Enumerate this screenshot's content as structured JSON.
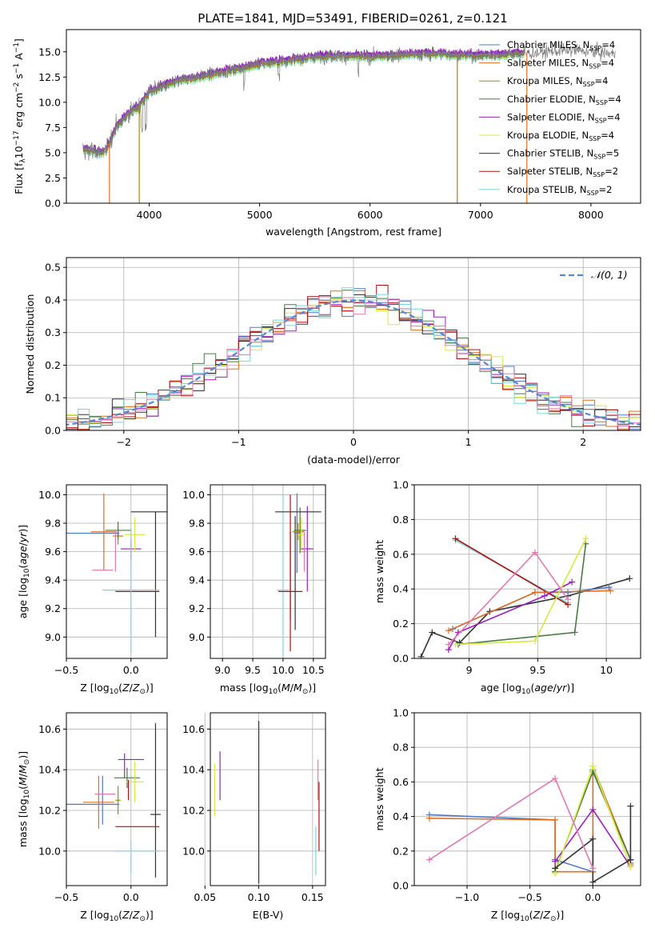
{
  "figure_title": "PLATE=1841, MJD=53491, FIBERID=0261, z=0.121",
  "colors": {
    "Chabrier MILES": "#4f78c8",
    "Salpeter MILES": "#e07020",
    "Kroupa MILES": "#a08a10",
    "Chabrier ELODIE": "#4a7a45",
    "Salpeter ELODIE": "#9a22b8",
    "Kroupa ELODIE": "#d8ea40",
    "Chabrier STELIB": "#333333",
    "Salpeter STELIB": "#b01010",
    "Kroupa STELIB": "#78d8e0",
    "Pink": "#e07ab0",
    "Data": "#7a7a7a",
    "Normal": "#5588d0"
  },
  "chart_data": [
    {
      "type": "line",
      "title": "PLATE=1841, MJD=53491, FIBERID=0261, z=0.121",
      "xlabel": "wavelength [Angstrom, rest frame]",
      "ylabel": "Flux [f_λ 10^-17 erg cm^-2 s^-1 A^-1]",
      "xlim": [
        3250,
        8450
      ],
      "ylim": [
        0,
        17.2
      ],
      "xticks": [
        4000,
        5000,
        6000,
        7000,
        8000
      ],
      "yticks": [
        0.0,
        2.5,
        5.0,
        7.5,
        10.0,
        12.5,
        15.0
      ],
      "legend": [
        "Chabrier MILES, N_SSP=4",
        "Salpeter MILES, N_SSP=4",
        "Kroupa MILES, N_SSP=4",
        "Chabrier ELODIE, N_SSP=4",
        "Salpeter ELODIE, N_SSP=4",
        "Kroupa ELODIE, N_SSP=4",
        "Chabrier STELIB, N_SSP=5",
        "Salpeter STELIB, N_SSP=2",
        "Kroupa STELIB, N_SSP=2"
      ],
      "continuum_x": [
        3400,
        3600,
        3700,
        3800,
        3900,
        4000,
        4100,
        4300,
        4500,
        4800,
        5000,
        5300,
        5600,
        6000,
        6300,
        6600,
        7000,
        7300,
        7500,
        7800,
        8100,
        8200
      ],
      "continuum_y": [
        5.3,
        5.0,
        7.5,
        8.8,
        9.5,
        11.0,
        11.5,
        12.2,
        12.6,
        13.3,
        13.8,
        14.2,
        14.6,
        14.5,
        14.7,
        14.8,
        14.6,
        14.8,
        14.9,
        15.2,
        14.9,
        14.8
      ],
      "noise": 0.7
    },
    {
      "type": "histogram",
      "xlabel": "(data-model)/error",
      "ylabel": "Normed distribution",
      "xlim": [
        -2.5,
        2.5
      ],
      "ylim": [
        0,
        0.53
      ],
      "xticks": [
        -2,
        -1,
        0,
        1,
        2
      ],
      "yticks": [
        0.0,
        0.1,
        0.2,
        0.3,
        0.4,
        0.5
      ],
      "legend": [
        "𝒩(0, 1)"
      ],
      "bin_width": 0.1
    },
    {
      "type": "errorbar",
      "xlabel": "Z [log10(Z/Z⊙)]",
      "ylabel": "age  [log10(age/yr)]",
      "xlim": [
        -0.5,
        0.28
      ],
      "ylim": [
        8.85,
        10.07
      ],
      "xticks": [
        -0.5,
        0.0
      ],
      "xticklabels": [
        "−0.5",
        "0.0"
      ],
      "yticks": [
        9.0,
        9.2,
        9.4,
        9.6,
        9.8,
        10.0
      ],
      "points": [
        {
          "c": "Chabrier MILES",
          "x": -0.31,
          "xerr": 0.22,
          "y": 9.73,
          "yerr": 0
        },
        {
          "c": "Salpeter MILES",
          "x": -0.21,
          "xerr": 0.1,
          "y": 9.74,
          "yerr": 0.27
        },
        {
          "c": "Kroupa MILES",
          "x": -0.1,
          "xerr": 0.04,
          "y": 9.71,
          "yerr": 0.06
        },
        {
          "c": "Chabrier ELODIE",
          "x": -0.1,
          "xerr": 0.1,
          "y": 9.75,
          "yerr": 0.06
        },
        {
          "c": "Salpeter ELODIE",
          "x": 0.0,
          "xerr": 0.08,
          "y": 9.62,
          "yerr": 0.07
        },
        {
          "c": "Kroupa ELODIE",
          "x": 0.03,
          "xerr": 0.08,
          "y": 9.72,
          "yerr": 0.12
        },
        {
          "c": "Chabrier STELIB",
          "x": 0.19,
          "xerr": 0.19,
          "y": 9.88,
          "yerr": 0.0
        },
        {
          "c": "Chabrier STELIB",
          "x": 0.19,
          "xerr": 0.0,
          "y": 9.44,
          "yerr": 0.44
        },
        {
          "c": "Salpeter STELIB",
          "x": 0.05,
          "xerr": 0.17,
          "y": 9.32,
          "yerr": 0
        },
        {
          "c": "Kroupa STELIB",
          "x": -0.0,
          "xerr": 0.22,
          "y": 9.33,
          "yerr": 0.44
        },
        {
          "c": "Pink",
          "x": -0.22,
          "xerr": 0.08,
          "y": 9.47,
          "yerr": 0
        },
        {
          "c": "Pink",
          "x": -0.12,
          "xerr": 0,
          "y": 9.6,
          "yerr": 0.14
        }
      ]
    },
    {
      "type": "errorbar",
      "xlabel": "mass [log10(M/M⊙)]",
      "ylabel": "",
      "xlim": [
        8.8,
        10.7
      ],
      "ylim": [
        8.85,
        10.07
      ],
      "xticks": [
        9.0,
        9.5,
        10.0,
        10.5
      ],
      "yticks": [
        9.0,
        9.2,
        9.4,
        9.6,
        9.8,
        10.0
      ],
      "points": [
        {
          "c": "Kroupa STELIB",
          "x": 10.0,
          "xerr": 0.1,
          "y": 9.33,
          "yerr": 0.67
        },
        {
          "c": "Salpeter STELIB",
          "x": 10.12,
          "xerr": 0.2,
          "y": 9.32,
          "yerr": 0.42
        },
        {
          "c": "Salpeter STELIB",
          "x": 10.12,
          "xerr": 0.0,
          "y": 9.56,
          "yerr": 0.44
        },
        {
          "c": "Chabrier STELIB",
          "x": 10.2,
          "xerr": 0,
          "y": 9.45,
          "yerr": 0.4
        },
        {
          "c": "Chabrier MILES",
          "x": 10.23,
          "xerr": 0.05,
          "y": 9.73,
          "yerr": 0.28
        },
        {
          "c": "Kroupa MILES",
          "x": 10.25,
          "xerr": 0.1,
          "y": 9.74,
          "yerr": 0.06
        },
        {
          "c": "Chabrier ELODIE",
          "x": 10.28,
          "xerr": 0.1,
          "y": 9.75,
          "yerr": 0.16
        },
        {
          "c": "Kroupa ELODIE",
          "x": 10.3,
          "xerr": 0.06,
          "y": 9.72,
          "yerr": 0.12
        },
        {
          "c": "Salpeter ELODIE",
          "x": 10.4,
          "xerr": 0.1,
          "y": 9.62,
          "yerr": 0.3
        },
        {
          "c": "Chabrier STELIB",
          "x": 10.25,
          "xerr": 0.38,
          "y": 9.88,
          "yerr": 0
        },
        {
          "c": "Pink",
          "x": 10.35,
          "xerr": 0.05,
          "y": 9.6,
          "yerr": 0.14
        }
      ]
    },
    {
      "type": "line",
      "xlabel": "age  [log10(age/yr)]",
      "ylabel": "mass weight",
      "xlim": [
        8.6,
        10.25
      ],
      "ylim": [
        0,
        1
      ],
      "xticks": [
        9.0,
        9.5,
        10.0
      ],
      "yticks": [
        0.0,
        0.2,
        0.4,
        0.6,
        0.8,
        1.0
      ],
      "series": [
        {
          "c": "Chabrier STELIB",
          "x": [
            8.65,
            8.73,
            8.93,
            9.15,
            9.72,
            10.17
          ],
          "y": [
            0.01,
            0.15,
            0.09,
            0.27,
            0.36,
            0.46
          ]
        },
        {
          "c": "Kroupa STELIB",
          "x": [
            8.9,
            9.72
          ],
          "y": [
            0.68,
            0.32
          ]
        },
        {
          "c": "Salpeter STELIB",
          "x": [
            8.9,
            9.72
          ],
          "y": [
            0.69,
            0.31
          ]
        },
        {
          "c": "Chabrier MILES",
          "x": [
            8.88,
            9.48,
            9.72,
            10.02
          ],
          "y": [
            0.17,
            0.38,
            0.38,
            0.41
          ]
        },
        {
          "c": "Salpeter MILES",
          "x": [
            8.85,
            9.48,
            10.03
          ],
          "y": [
            0.16,
            0.38,
            0.39
          ]
        },
        {
          "c": "Salpeter ELODIE",
          "x": [
            8.85,
            8.92,
            9.55,
            9.75
          ],
          "y": [
            0.05,
            0.15,
            0.36,
            0.44
          ]
        },
        {
          "c": "Chabrier ELODIE",
          "x": [
            8.92,
            9.77,
            9.85
          ],
          "y": [
            0.08,
            0.15,
            0.66
          ]
        },
        {
          "c": "Kroupa ELODIE",
          "x": [
            8.9,
            9.48,
            9.85
          ],
          "y": [
            0.08,
            0.1,
            0.69
          ]
        },
        {
          "c": "Pink",
          "x": [
            8.85,
            9.48,
            9.72
          ],
          "y": [
            0.08,
            0.61,
            0.34
          ]
        }
      ]
    },
    {
      "type": "errorbar",
      "xlabel": "Z [log10(Z/Z⊙)]",
      "ylabel": "mass [log10(M/M⊙)]",
      "xlim": [
        -0.5,
        0.28
      ],
      "ylim": [
        9.83,
        10.68
      ],
      "xticks": [
        -0.5,
        0.0
      ],
      "xticklabels": [
        "−0.5",
        "0.0"
      ],
      "yticks": [
        10.0,
        10.2,
        10.4,
        10.6
      ],
      "points": [
        {
          "c": "Chabrier MILES",
          "x": -0.31,
          "xerr": 0.22,
          "y": 10.23,
          "yerr": 0
        },
        {
          "c": "Chabrier MILES",
          "x": -0.22,
          "xerr": 0,
          "y": 10.25,
          "yerr": 0.12
        },
        {
          "c": "Salpeter MILES",
          "x": -0.25,
          "xerr": 0.12,
          "y": 10.24,
          "yerr": 0.13
        },
        {
          "c": "Kroupa MILES",
          "x": -0.1,
          "xerr": 0.02,
          "y": 10.25,
          "yerr": 0.07
        },
        {
          "c": "Chabrier ELODIE",
          "x": -0.03,
          "xerr": 0.1,
          "y": 10.36,
          "yerr": 0.05
        },
        {
          "c": "Salpeter ELODIE",
          "x": 0.0,
          "xerr": 0.1,
          "y": 10.45,
          "yerr": 0.0
        },
        {
          "c": "Salpeter ELODIE",
          "x": -0.05,
          "xerr": 0,
          "y": 10.42,
          "yerr": 0.06
        },
        {
          "c": "Kroupa ELODIE",
          "x": 0.03,
          "xerr": 0.07,
          "y": 10.34,
          "yerr": 0.1
        },
        {
          "c": "Chabrier STELIB",
          "x": 0.19,
          "xerr": 0.0,
          "y": 10.25,
          "yerr": 0.38
        },
        {
          "c": "Chabrier STELIB",
          "x": 0.19,
          "xerr": 0.04,
          "y": 10.18,
          "yerr": 0.0
        },
        {
          "c": "Salpeter STELIB",
          "x": 0.05,
          "xerr": 0.17,
          "y": 10.12,
          "yerr": 0
        },
        {
          "c": "Kroupa STELIB",
          "x": 0.05,
          "xerr": 0.17,
          "y": 10.0,
          "yerr": 0.0
        },
        {
          "c": "Kroupa STELIB",
          "x": 0.0,
          "xerr": 0.0,
          "y": 9.97,
          "yerr": 0.08
        },
        {
          "c": "Pink",
          "x": -0.2,
          "xerr": 0.08,
          "y": 10.28,
          "yerr": 0
        },
        {
          "c": "Salpeter STELIB",
          "x": -0.02,
          "xerr": 0,
          "y": 10.3,
          "yerr": 0.05
        }
      ]
    },
    {
      "type": "errorbar",
      "xlabel": "E(B-V)",
      "ylabel": "",
      "xlim": [
        0.055,
        0.162
      ],
      "ylim": [
        9.83,
        10.68
      ],
      "xticks": [
        0.05,
        0.1,
        0.15
      ],
      "xticklabels": [
        "0.05",
        "0.10",
        "0.15"
      ],
      "yticks": [
        10.0,
        10.2,
        10.4,
        10.6
      ],
      "points": [
        {
          "c": "Kroupa ELODIE",
          "x": 0.059,
          "xerr": 0,
          "y": 10.3,
          "yerr": 0.13
        },
        {
          "c": "Salpeter ELODIE",
          "x": 0.064,
          "xerr": 0,
          "y": 10.37,
          "yerr": 0.12
        },
        {
          "c": "Chabrier STELIB",
          "x": 0.1,
          "xerr": 0,
          "y": 10.24,
          "yerr": 0.4
        },
        {
          "c": "Kroupa STELIB",
          "x": 0.153,
          "xerr": 0,
          "y": 10.0,
          "yerr": 0.12
        },
        {
          "c": "Pink",
          "x": 0.155,
          "xerr": 0,
          "y": 10.35,
          "yerr": 0.1
        },
        {
          "c": "Salpeter STELIB",
          "x": 0.156,
          "xerr": 0,
          "y": 10.17,
          "yerr": 0.17
        }
      ]
    },
    {
      "type": "line",
      "xlabel": "Z [log10(Z/Z⊙)]",
      "ylabel": "mass weight",
      "xlim": [
        -1.42,
        0.38
      ],
      "ylim": [
        0,
        1
      ],
      "xticks": [
        -1.0,
        -0.5,
        0.0
      ],
      "xticklabels": [
        "−1.0",
        "−0.5",
        "0.0"
      ],
      "yticks": [
        0.0,
        0.2,
        0.4,
        0.6,
        0.8,
        1.0
      ],
      "series": [
        {
          "c": "Chabrier MILES",
          "x": [
            -1.3,
            -0.3,
            -0.3,
            0.0,
            0.0,
            0.3,
            0.3
          ],
          "y": [
            0.41,
            0.38,
            0.15,
            0.08,
            0.67,
            0.15,
            0.13
          ]
        },
        {
          "c": "Salpeter MILES",
          "x": [
            -1.3,
            -0.3,
            -0.3,
            0.0,
            0.0,
            0.3,
            0.3
          ],
          "y": [
            0.39,
            0.38,
            0.08,
            0.08,
            0.69,
            0.15,
            0.12
          ]
        },
        {
          "c": "Salpeter ELODIE",
          "x": [
            -0.3,
            0.0,
            0.3
          ],
          "y": [
            0.14,
            0.44,
            0.11
          ]
        },
        {
          "c": "Chabrier ELODIE",
          "x": [
            -0.3,
            0.0,
            0.3
          ],
          "y": [
            0.08,
            0.66,
            0.15
          ]
        },
        {
          "c": "Kroupa ELODIE",
          "x": [
            -0.3,
            0.0,
            0.3
          ],
          "y": [
            0.07,
            0.69,
            0.11
          ]
        },
        {
          "c": "Chabrier STELIB",
          "x": [
            -0.3,
            0.0,
            0.0,
            0.3,
            0.3
          ],
          "y": [
            0.1,
            0.27,
            0.02,
            0.15,
            0.46
          ]
        },
        {
          "c": "Pink",
          "x": [
            -1.3,
            -0.3,
            0.0
          ],
          "y": [
            0.15,
            0.62,
            0.1
          ]
        }
      ]
    }
  ]
}
